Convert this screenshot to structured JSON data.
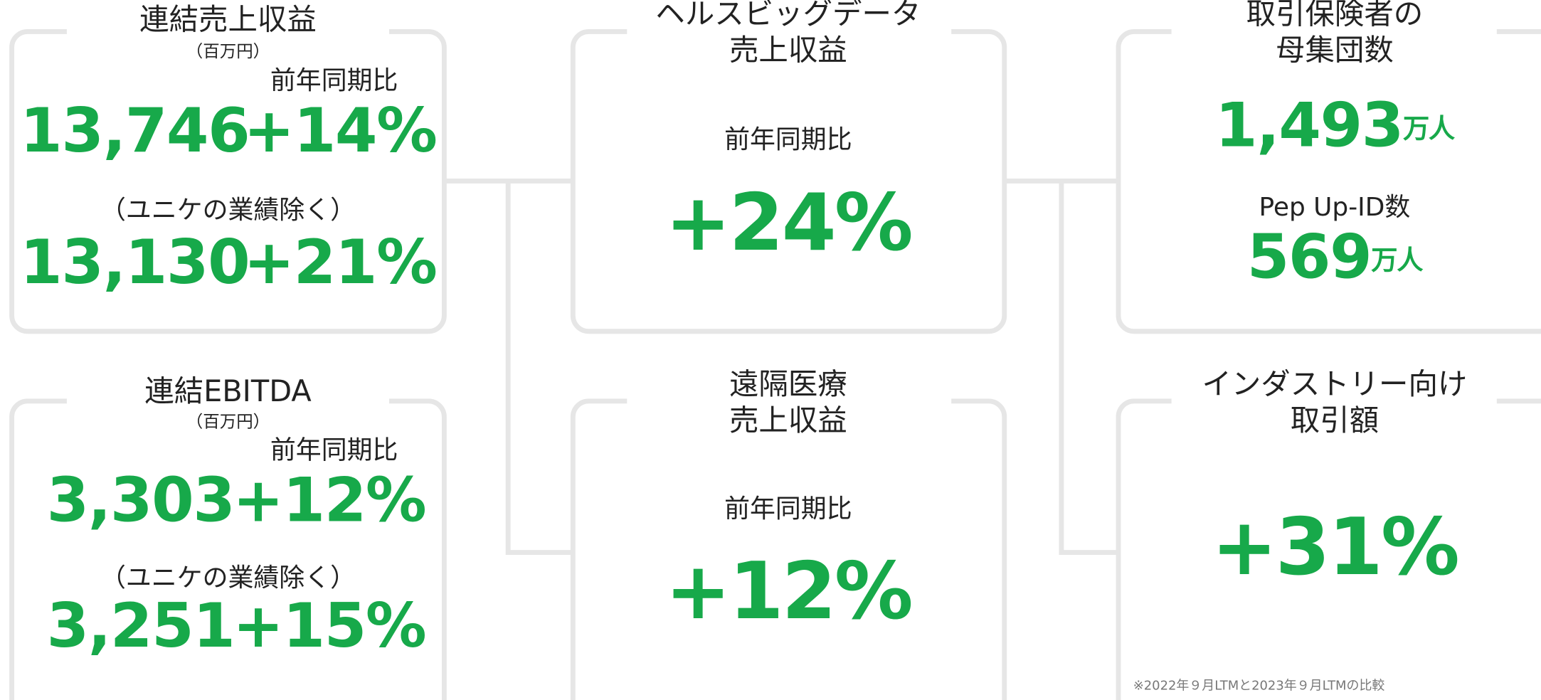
{
  "panels": [
    {
      "title": "連結売上収益",
      "unit": "（百万円）",
      "yoy_label": "前年同期比",
      "value1": "13,746",
      "change1": "+14%",
      "note": "（ユニケの業績除く）",
      "value2": "13,130",
      "change2": "+21%"
    },
    {
      "title": "連結EBITDA",
      "unit": "（百万円）",
      "yoy_label": "前年同期比",
      "value1": "3,303",
      "change1": "+12%",
      "note": "（ユニケの業績除く）",
      "value2": "3,251",
      "change2": "+15%"
    },
    {
      "title_lines": [
        "ヘルスビッグデータ",
        "売上収益"
      ],
      "yoy_label": "前年同期比",
      "change": "+24%"
    },
    {
      "title_lines": [
        "遠隔医療",
        "売上収益"
      ],
      "yoy_label": "前年同期比",
      "change": "+12%"
    },
    {
      "title_lines": [
        "取引保険者の",
        "母集団数"
      ],
      "value1": "1,493",
      "unit1": "万人",
      "label2": "Pep Up-ID数",
      "value2": "569",
      "unit2": "万人"
    },
    {
      "title_lines": [
        "インダストリー向け",
        "取引額"
      ],
      "change": "+31%",
      "footnote": "※2022年９月LTMと2023年９月LTMの比較"
    }
  ]
}
